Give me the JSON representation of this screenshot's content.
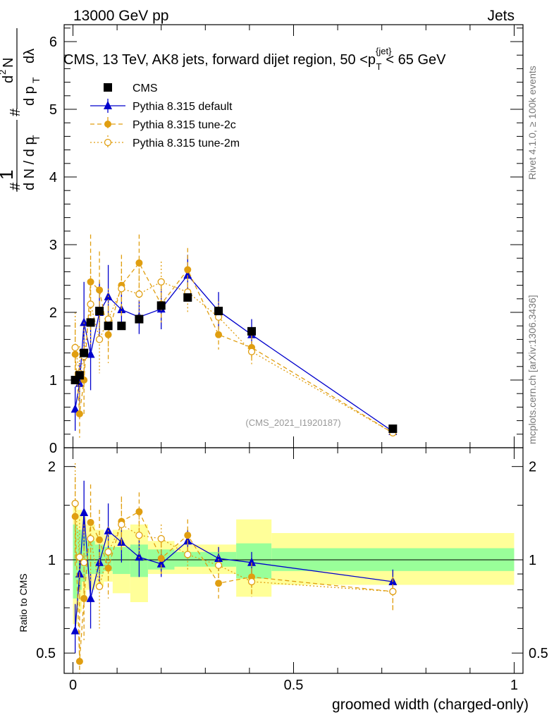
{
  "header": {
    "left": "13000 GeV pp",
    "right": "Jets"
  },
  "plot_title": "CMS, 13 TeV, AK8 jets, forward dijet region, 50 <p_T^{jet}< 65 GeV",
  "side_labels": {
    "rivet": "Rivet 4.1.0, ≥ 100k events",
    "mcplots": "mcplots.cern.ch [arXiv:1306.3436]"
  },
  "analysis_id": "(CMS_2021_I1920187)",
  "colors": {
    "cms": "#000000",
    "default": "#0000cc",
    "tune2c": "#e09e10",
    "tune2m": "#e09e10",
    "band_inner": "#99ff99",
    "band_outer": "#ffff99"
  },
  "chart_data": [
    {
      "type": "scatter",
      "panel": "main",
      "title": "CMS, 13 TeV, AK8 jets, forward dijet region, 50 <p_T^{jet}< 65 GeV",
      "ylabel": "1/dN/dp_T  d^2N/(dp_T dlambda)",
      "ylim": [
        0,
        6.25
      ],
      "yticks": [
        "0",
        "1",
        "2",
        "3",
        "4",
        "5",
        "6"
      ],
      "legend": [
        "CMS",
        "Pythia 8.315 default",
        "Pythia 8.315 tune-2c",
        "Pythia 8.315 tune-2m"
      ],
      "legend_position": "top-left",
      "series": [
        {
          "name": "CMS",
          "marker": "square",
          "x": [
            0.005,
            0.015,
            0.025,
            0.04,
            0.06,
            0.08,
            0.11,
            0.15,
            0.2,
            0.26,
            0.33,
            0.405,
            0.725
          ],
          "y": [
            1.0,
            1.07,
            1.4,
            1.85,
            2.02,
            1.8,
            1.8,
            1.9,
            2.1,
            2.22,
            2.02,
            1.72,
            0.28
          ],
          "ylo": [
            0.95,
            1.02,
            1.35,
            1.8,
            1.97,
            1.75,
            1.75,
            1.85,
            2.05,
            2.17,
            1.97,
            1.67,
            0.25
          ],
          "yhi": [
            1.05,
            1.12,
            1.45,
            1.9,
            2.07,
            1.85,
            1.85,
            1.95,
            2.15,
            2.27,
            2.07,
            1.77,
            0.31
          ]
        },
        {
          "name": "Pythia 8.315 default",
          "marker": "triangle",
          "x": [
            0.005,
            0.015,
            0.025,
            0.04,
            0.06,
            0.08,
            0.11,
            0.15,
            0.2,
            0.26,
            0.33,
            0.405,
            0.725
          ],
          "y": [
            0.57,
            0.95,
            1.85,
            1.38,
            2.0,
            2.23,
            2.04,
            1.93,
            2.05,
            2.55,
            2.02,
            1.67,
            0.24
          ],
          "ylo": [
            0.25,
            0.65,
            1.25,
            0.85,
            1.55,
            1.75,
            1.75,
            1.68,
            1.75,
            2.25,
            1.75,
            1.45,
            0.2
          ],
          "yhi": [
            0.9,
            1.25,
            2.45,
            1.9,
            2.45,
            2.7,
            2.33,
            2.18,
            2.35,
            2.85,
            2.3,
            1.9,
            0.28
          ]
        },
        {
          "name": "Pythia 8.315 tune-2c",
          "marker": "circle",
          "x": [
            0.005,
            0.015,
            0.025,
            0.04,
            0.06,
            0.08,
            0.11,
            0.15,
            0.2,
            0.26,
            0.33,
            0.405,
            0.725
          ],
          "y": [
            1.38,
            0.5,
            1.0,
            2.45,
            2.33,
            1.67,
            2.4,
            2.73,
            2.12,
            2.63,
            1.67,
            1.48,
            0.22
          ],
          "ylo": [
            0.95,
            0.15,
            0.5,
            1.75,
            1.75,
            1.25,
            1.95,
            2.3,
            1.85,
            2.3,
            1.45,
            1.28,
            0.18
          ],
          "yhi": [
            1.85,
            0.9,
            1.5,
            3.15,
            2.9,
            2.1,
            2.85,
            3.15,
            2.4,
            2.95,
            1.9,
            1.68,
            0.26
          ]
        },
        {
          "name": "Pythia 8.315 tune-2m",
          "marker": "open-circle",
          "x": [
            0.005,
            0.015,
            0.025,
            0.04,
            0.06,
            0.08,
            0.11,
            0.15,
            0.2,
            0.26,
            0.33,
            0.405,
            0.725
          ],
          "y": [
            1.48,
            1.1,
            1.35,
            2.12,
            1.6,
            1.9,
            2.35,
            2.27,
            2.45,
            2.3,
            1.93,
            1.42,
            0.22
          ],
          "ylo": [
            1.0,
            0.7,
            0.85,
            1.5,
            1.1,
            1.45,
            1.95,
            1.9,
            2.15,
            2.0,
            1.7,
            1.22,
            0.18
          ],
          "yhi": [
            2.0,
            1.5,
            1.85,
            2.75,
            2.1,
            2.35,
            2.75,
            2.65,
            2.75,
            2.6,
            2.16,
            1.62,
            0.26
          ]
        }
      ]
    },
    {
      "type": "scatter",
      "panel": "ratio",
      "xlabel": "groomed width (charged-only)",
      "ylabel": "Ratio to CMS",
      "xlim": [
        -0.02,
        1.02
      ],
      "xticks": [
        "0",
        "0.5",
        "1"
      ],
      "ylim": [
        0.43,
        2.3
      ],
      "yticks": [
        "0.5",
        "1",
        "2"
      ],
      "reference_line": 1,
      "bands": {
        "edges": [
          0.0,
          0.01,
          0.02,
          0.03,
          0.05,
          0.07,
          0.09,
          0.13,
          0.17,
          0.23,
          0.29,
          0.37,
          0.45,
          1.0
        ],
        "inner_lo": [
          0.75,
          0.8,
          0.85,
          0.9,
          0.9,
          0.92,
          0.9,
          0.88,
          0.93,
          0.95,
          0.95,
          0.87,
          0.92
        ],
        "inner_hi": [
          1.3,
          1.25,
          1.2,
          1.15,
          1.12,
          1.1,
          1.1,
          1.12,
          1.08,
          1.06,
          1.06,
          1.13,
          1.09
        ],
        "outer_lo": [
          0.62,
          0.68,
          0.73,
          0.8,
          0.82,
          0.85,
          0.78,
          0.73,
          0.9,
          0.9,
          0.9,
          0.76,
          0.83
        ],
        "outer_hi": [
          1.55,
          1.45,
          1.38,
          1.3,
          1.25,
          1.2,
          1.25,
          1.3,
          1.15,
          1.12,
          1.12,
          1.35,
          1.22
        ]
      },
      "series": [
        {
          "name": "Pythia 8.315 default",
          "marker": "triangle",
          "x": [
            0.005,
            0.015,
            0.025,
            0.04,
            0.06,
            0.08,
            0.11,
            0.15,
            0.2,
            0.26,
            0.33,
            0.405,
            0.725
          ],
          "y": [
            0.59,
            0.9,
            1.42,
            0.75,
            0.98,
            1.24,
            1.14,
            1.02,
            0.97,
            1.15,
            1.01,
            0.98,
            0.85
          ],
          "ylo": [
            0.5,
            0.8,
            1.08,
            0.6,
            0.85,
            1.05,
            0.98,
            0.88,
            0.88,
            1.05,
            0.92,
            0.9,
            0.78
          ],
          "yhi": [
            0.72,
            1.05,
            1.8,
            0.9,
            1.12,
            1.52,
            1.3,
            1.16,
            1.08,
            1.25,
            1.1,
            1.06,
            0.93
          ]
        },
        {
          "name": "Pythia 8.315 tune-2c",
          "marker": "circle",
          "x": [
            0.005,
            0.015,
            0.025,
            0.04,
            0.06,
            0.08,
            0.11,
            0.15,
            0.2,
            0.26,
            0.33,
            0.405,
            0.725
          ],
          "y": [
            1.38,
            0.47,
            0.75,
            1.32,
            1.16,
            0.94,
            1.33,
            1.43,
            1.01,
            1.2,
            0.84,
            0.88,
            0.79
          ],
          "ylo": [
            0.95,
            0.43,
            0.55,
            0.95,
            0.9,
            0.75,
            1.05,
            1.2,
            0.9,
            1.05,
            0.75,
            0.78,
            0.68
          ],
          "yhi": [
            1.85,
            0.9,
            1.1,
            1.75,
            1.45,
            1.15,
            1.6,
            1.65,
            1.13,
            1.35,
            0.95,
            0.98,
            0.88
          ]
        },
        {
          "name": "Pythia 8.315 tune-2m",
          "marker": "open-circle",
          "x": [
            0.005,
            0.015,
            0.025,
            0.04,
            0.06,
            0.08,
            0.11,
            0.15,
            0.2,
            0.26,
            0.33,
            0.405,
            0.725
          ],
          "y": [
            1.52,
            1.02,
            0.98,
            1.17,
            0.82,
            1.06,
            1.3,
            1.2,
            1.17,
            1.04,
            0.96,
            0.85,
            0.79
          ],
          "ylo": [
            1.05,
            0.75,
            0.7,
            0.85,
            0.6,
            0.85,
            1.08,
            1.0,
            1.05,
            0.92,
            0.86,
            0.76,
            0.68
          ],
          "yhi": [
            2.05,
            1.35,
            1.3,
            1.5,
            1.05,
            1.28,
            1.55,
            1.4,
            1.3,
            1.16,
            1.06,
            0.94,
            0.88
          ]
        }
      ]
    }
  ]
}
